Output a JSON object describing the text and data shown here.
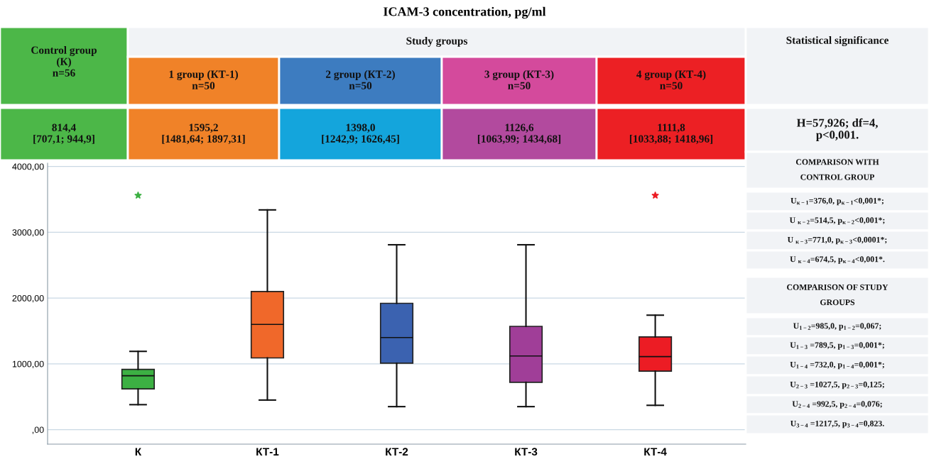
{
  "chart_data": {
    "type": "box",
    "title": "ICAM-3 concentration, pg/ml",
    "categories": [
      "К",
      "КТ-1",
      "КТ-2",
      "КТ-3",
      "КТ-4"
    ],
    "colors": [
      "#3cb043",
      "#f0682a",
      "#3b62b0",
      "#a03e98",
      "#ec1c24"
    ],
    "boxes": [
      {
        "low": 380,
        "q1": 620,
        "median": 820,
        "q3": 916,
        "high": 1190,
        "outliers": [
          3560
        ]
      },
      {
        "low": 450,
        "q1": 1090,
        "median": 1600,
        "q3": 2100,
        "high": 3340
      },
      {
        "low": 350,
        "q1": 1010,
        "median": 1400,
        "q3": 1920,
        "high": 2810
      },
      {
        "low": 350,
        "q1": 720,
        "median": 1120,
        "q3": 1570,
        "high": 2810
      },
      {
        "low": 370,
        "q1": 890,
        "median": 1110,
        "q3": 1410,
        "high": 1740,
        "outliers": [
          3560
        ]
      }
    ],
    "ylim": [
      -220,
      4050
    ],
    "yticks": [
      {
        "value": 0,
        "label": ",00"
      },
      {
        "value": 1000,
        "label": "1000,00"
      },
      {
        "value": 2000,
        "label": "2000,00"
      },
      {
        "value": 3000,
        "label": "3000,00"
      },
      {
        "value": 4000,
        "label": "4000,00"
      }
    ],
    "grid": "y",
    "annotations": [
      "Control group\n(К)\nn=56",
      "Study groups",
      "1 group (КТ-1)\nn=50",
      "2 group (КТ-2)\nn=50",
      "3 group (КТ-3)\nn=50",
      "4 group (КТ-4)\nn=50",
      "Statistical significance",
      "814,4\n[707,1; 944,9]",
      "1595,2\n[1481,64; 1897,31]",
      "1398,0\n[1242,9; 1626,45]",
      "1126,6\n[1063,99; 1434,68]",
      "1111,8\n[1033,88; 1418,96]",
      "H=57,926; df=4,\np<0,001.",
      "COMPARISON WITH\nCONTROL GROUP",
      "U$_{к−1}$=376,0, p$_{к−1}$<0,001*;",
      "U $_{к−2}$=514,5, p$_{к−2}$<0,001*;",
      "U $_{к−3}$=771,0, p$_{к−3}$<0,0001*;",
      "U $_{к−4}$=674,5, p$_{к−4}$<0,001*.",
      "COMPARISON OF STUDY\nGROUPS",
      "U$_{1−2}$=985,0, p$_{1−2}$=0,067;",
      "U$_{1−3}$ =789,5, p$_{1−3}$=0,001*;",
      "U$_{1−4}$ =732,0, p$_{1−4}$=0,001*;",
      "U$_{2−3}$ =1027,5, p$_{2−3}$=0,125;",
      "U$_{2−4}$ =992,5, p$_{2−4}$=0,076;",
      "U$_{3−4}$ =1217,5, p$_{3−4}$=0,823."
    ]
  }
}
